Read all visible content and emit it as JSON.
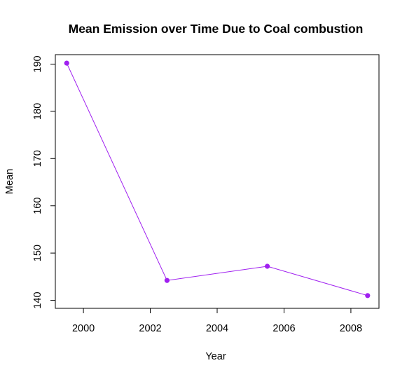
{
  "chart_data": {
    "type": "line",
    "title": "Mean Emission over Time Due to Coal combustion",
    "xlabel": "Year",
    "ylabel": "Mean",
    "x": [
      1999.5,
      2002.5,
      2005.5,
      2008.5
    ],
    "series": [
      {
        "values": [
          190.2,
          144.2,
          147.2,
          141.0
        ]
      }
    ],
    "xticks": [
      "2000",
      "2002",
      "2004",
      "2006",
      "2008"
    ],
    "yticks": [
      "140",
      "150",
      "160",
      "170",
      "180",
      "190"
    ],
    "xlim": [
      1999.16,
      2008.84
    ],
    "ylim": [
      138.3,
      192.0
    ],
    "color": "#a020f0",
    "grid": false,
    "legend": "none"
  }
}
